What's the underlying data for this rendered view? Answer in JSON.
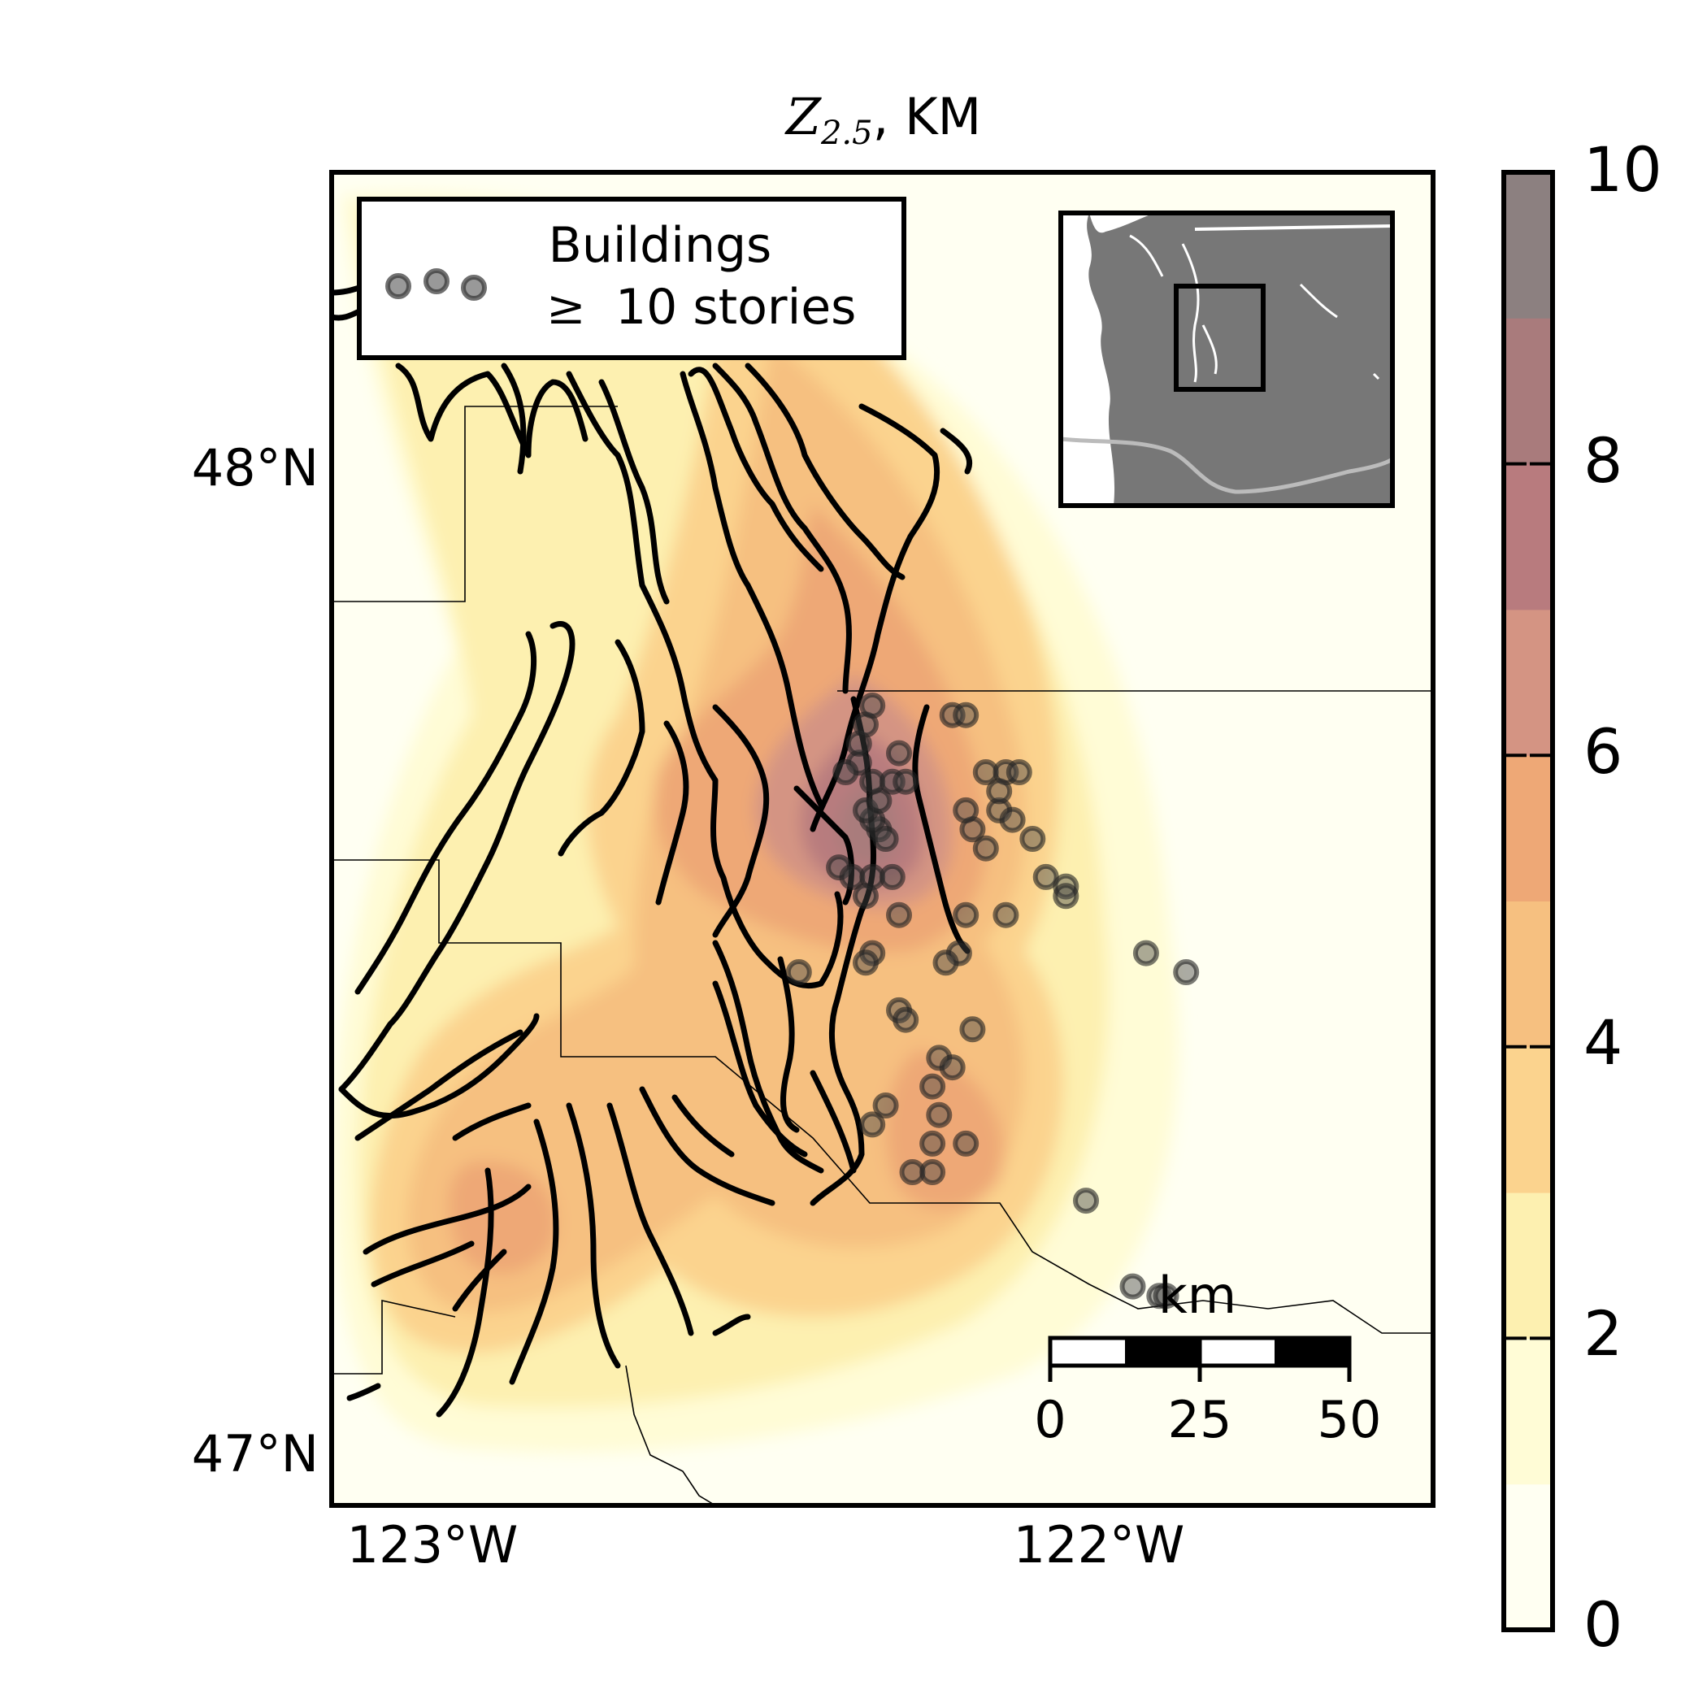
{
  "title": {
    "symbol": "Z",
    "subscript": "2.5",
    "suffix": ", KM"
  },
  "legend": {
    "line1": "Buildings",
    "line2_symbol": "≥",
    "line2_text": "10 stories"
  },
  "axes": {
    "lat_labels": [
      "48°N",
      "47°N"
    ],
    "lon_labels": [
      "123°W",
      "122°W"
    ]
  },
  "scalebar": {
    "unit": "km",
    "ticks": [
      "0",
      "25",
      "50"
    ]
  },
  "colorbar": {
    "ticks": [
      "10",
      "8",
      "6",
      "4",
      "2",
      "0"
    ],
    "colors": [
      "#fffff2",
      "#fffcd6",
      "#fdf0b0",
      "#fbd38e",
      "#f6c080",
      "#eea876",
      "#d49483",
      "#b87b7e",
      "#a97b7c",
      "#8c8080"
    ]
  },
  "colors": {
    "land_inset": "#777777",
    "ocean_inset": "#ffffff",
    "points": "#000000"
  },
  "chart_data": {
    "type": "contour-map",
    "quantity": "Z2.5",
    "units": "KM",
    "color_range": [
      0,
      10
    ],
    "lat_range": [
      46.9,
      48.3
    ],
    "lon_range": [
      -123.15,
      -121.5
    ],
    "buildings": [
      {
        "lon": -122.33,
        "lat": 47.61
      },
      {
        "lon": -122.34,
        "lat": 47.62
      },
      {
        "lon": -122.32,
        "lat": 47.6
      },
      {
        "lon": -122.35,
        "lat": 47.63
      },
      {
        "lon": -122.33,
        "lat": 47.64
      },
      {
        "lon": -122.34,
        "lat": 47.66
      },
      {
        "lon": -122.36,
        "lat": 47.68
      },
      {
        "lon": -122.38,
        "lat": 47.67
      },
      {
        "lon": -122.36,
        "lat": 47.7
      },
      {
        "lon": -122.35,
        "lat": 47.72
      },
      {
        "lon": -122.34,
        "lat": 47.74
      },
      {
        "lon": -122.31,
        "lat": 47.66
      },
      {
        "lon": -122.3,
        "lat": 47.69
      },
      {
        "lon": -122.29,
        "lat": 47.66
      },
      {
        "lon": -122.19,
        "lat": 47.61
      },
      {
        "lon": -122.2,
        "lat": 47.63
      },
      {
        "lon": -122.17,
        "lat": 47.67
      },
      {
        "lon": -122.14,
        "lat": 47.67
      },
      {
        "lon": -122.12,
        "lat": 47.67
      },
      {
        "lon": -122.15,
        "lat": 47.63
      },
      {
        "lon": -122.13,
        "lat": 47.62
      },
      {
        "lon": -122.1,
        "lat": 47.6
      },
      {
        "lon": -122.08,
        "lat": 47.56
      },
      {
        "lon": -122.05,
        "lat": 47.55
      },
      {
        "lon": -122.05,
        "lat": 47.54
      },
      {
        "lon": -122.15,
        "lat": 47.65
      },
      {
        "lon": -122.17,
        "lat": 47.59
      },
      {
        "lon": -122.39,
        "lat": 47.57
      },
      {
        "lon": -122.37,
        "lat": 47.56
      },
      {
        "lon": -122.34,
        "lat": 47.56
      },
      {
        "lon": -122.31,
        "lat": 47.56
      },
      {
        "lon": -122.35,
        "lat": 47.54
      },
      {
        "lon": -122.3,
        "lat": 47.52
      },
      {
        "lon": -122.2,
        "lat": 47.52
      },
      {
        "lon": -122.14,
        "lat": 47.52
      },
      {
        "lon": -122.21,
        "lat": 47.48
      },
      {
        "lon": -122.23,
        "lat": 47.47
      },
      {
        "lon": -122.34,
        "lat": 47.48
      },
      {
        "lon": -122.35,
        "lat": 47.47
      },
      {
        "lon": -122.45,
        "lat": 47.46
      },
      {
        "lon": -122.3,
        "lat": 47.42
      },
      {
        "lon": -122.29,
        "lat": 47.41
      },
      {
        "lon": -122.19,
        "lat": 47.4
      },
      {
        "lon": -122.24,
        "lat": 47.37
      },
      {
        "lon": -122.22,
        "lat": 47.36
      },
      {
        "lon": -122.25,
        "lat": 47.34
      },
      {
        "lon": -122.24,
        "lat": 47.31
      },
      {
        "lon": -122.32,
        "lat": 47.32
      },
      {
        "lon": -122.34,
        "lat": 47.3
      },
      {
        "lon": -122.25,
        "lat": 47.28
      },
      {
        "lon": -122.2,
        "lat": 47.28
      },
      {
        "lon": -122.28,
        "lat": 47.25
      },
      {
        "lon": -122.25,
        "lat": 47.25
      },
      {
        "lon": -121.93,
        "lat": 47.48
      },
      {
        "lon": -121.87,
        "lat": 47.46
      },
      {
        "lon": -122.02,
        "lat": 47.22
      },
      {
        "lon": -121.95,
        "lat": 47.13
      },
      {
        "lon": -121.91,
        "lat": 47.12
      },
      {
        "lon": -121.9,
        "lat": 47.12
      },
      {
        "lon": -122.22,
        "lat": 47.73
      },
      {
        "lon": -122.2,
        "lat": 47.73
      }
    ]
  }
}
